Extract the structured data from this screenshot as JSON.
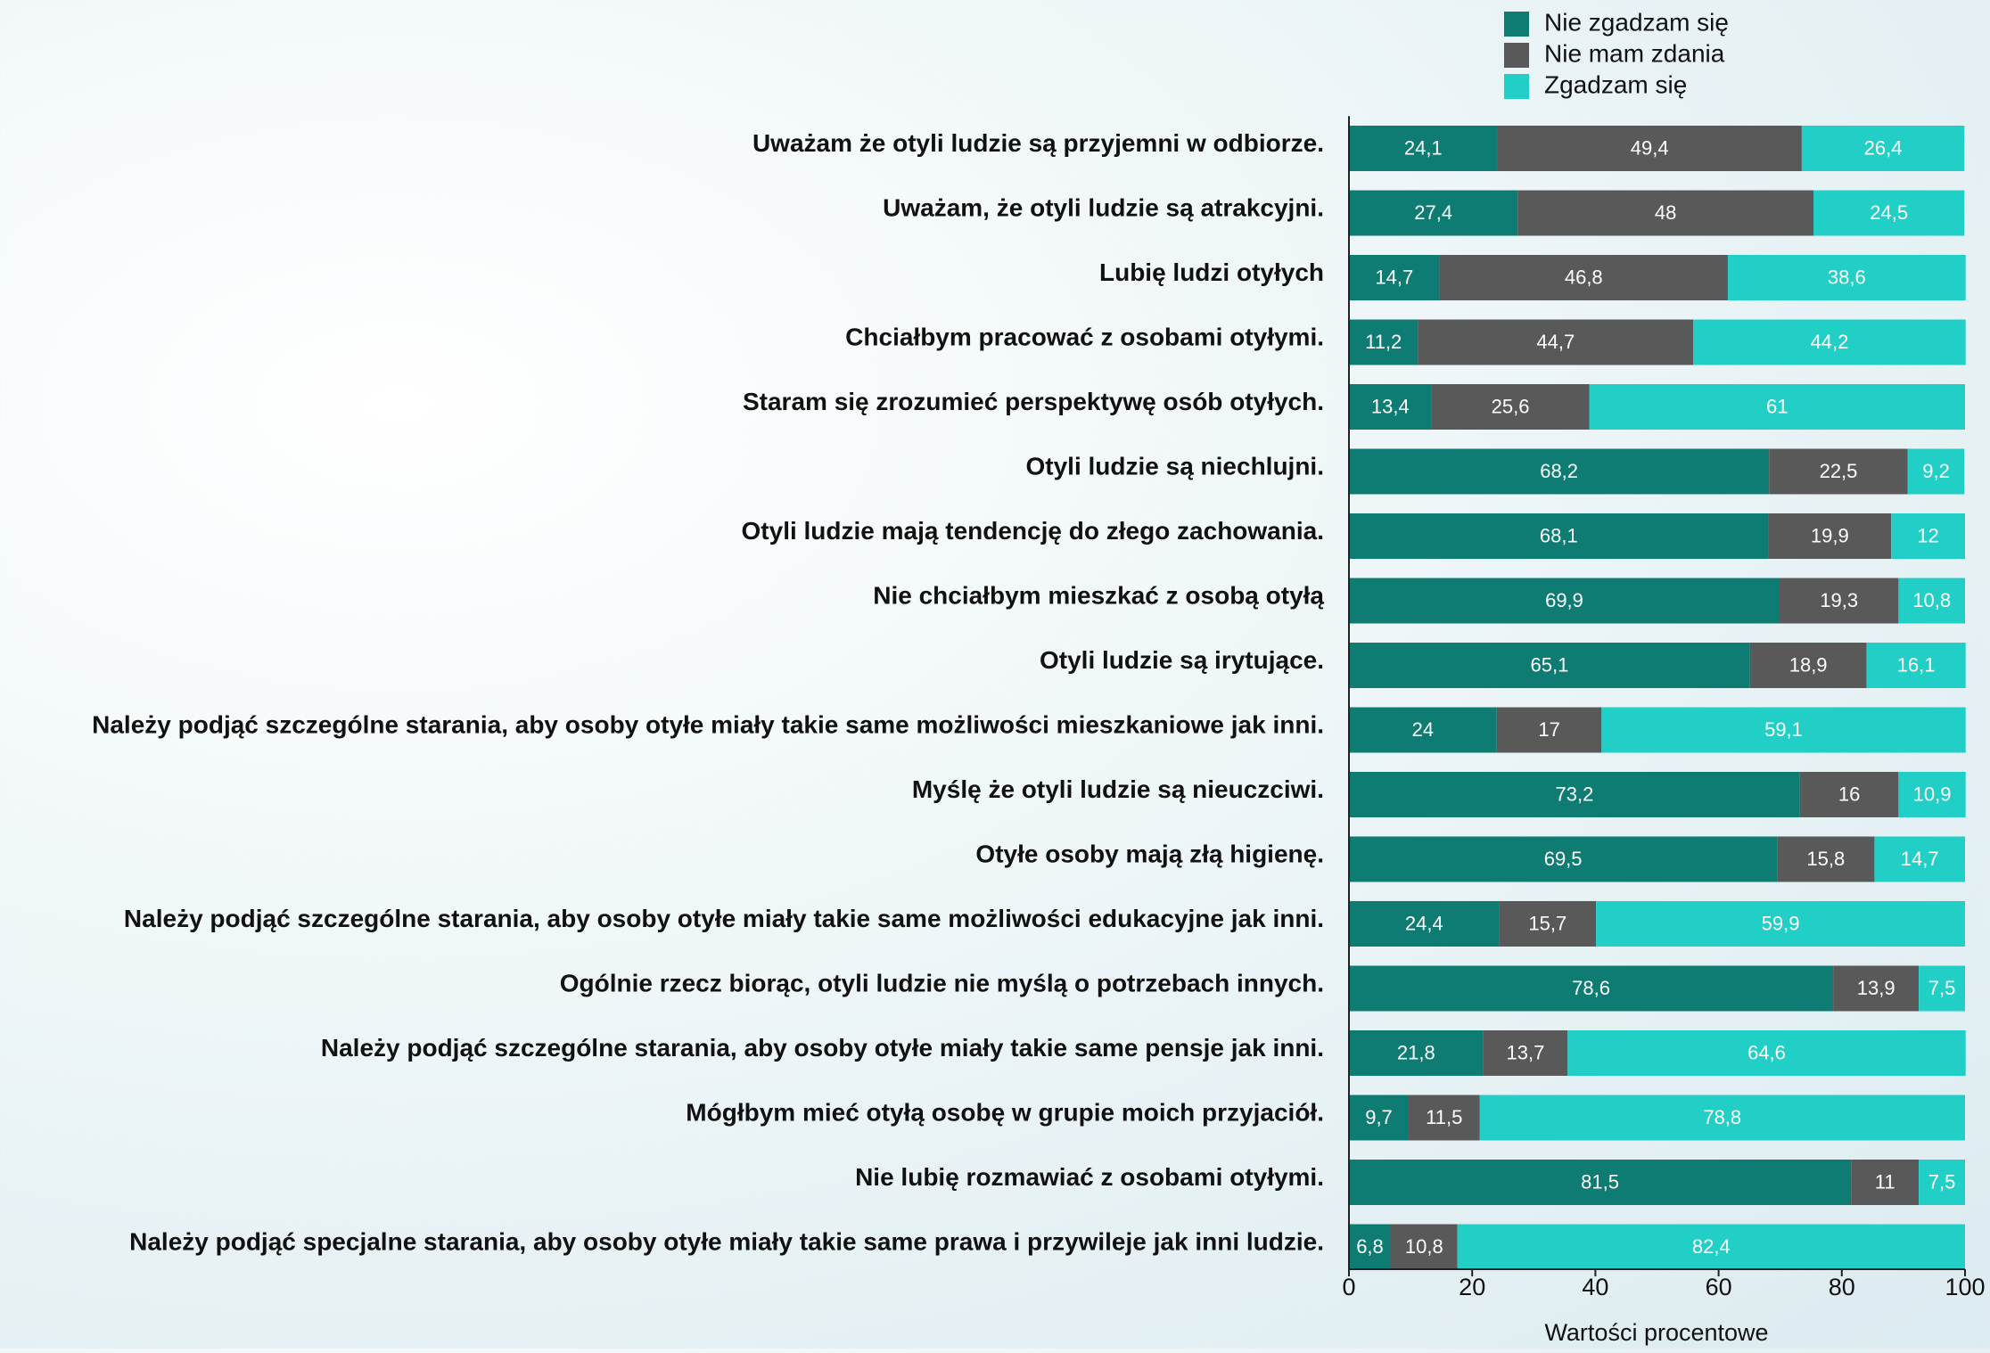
{
  "chart_data": {
    "type": "stacked_barh",
    "categories": [
      "Uważam że otyli ludzie są przyjemni w odbiorze.",
      "Uważam, że otyli ludzie są atrakcyjni.",
      "Lubię ludzi otyłych",
      "Chciałbym pracować z osobami otyłymi.",
      "Staram się zrozumieć perspektywę osób otyłych.",
      "Otyli ludzie są niechlujni.",
      "Otyli ludzie mają tendencję do złego zachowania.",
      "Nie chciałbym mieszkać z osobą otyłą",
      "Otyli ludzie są irytujące.",
      "Należy podjąć szczególne starania, aby osoby otyłe miały takie same możliwości mieszkaniowe jak inni.",
      "Myślę że otyli ludzie są nieuczciwi.",
      "Otyłe osoby mają złą higienę.",
      "Należy podjąć szczególne starania, aby osoby otyłe miały takie same możliwości edukacyjne jak inni.",
      "Ogólnie rzecz biorąc, otyli ludzie nie myślą o potrzebach innych.",
      "Należy podjąć szczególne starania, aby osoby otyłe miały takie same pensje jak inni.",
      "Mógłbym mieć otyłą osobę w grupie moich przyjaciół.",
      "Nie lubię rozmawiać z osobami otyłymi.",
      "Należy podjąć specjalne starania, aby osoby otyłe miały takie same prawa i przywileje jak inni ludzie."
    ],
    "series": [
      {
        "name": "Nie zgadzam się",
        "color": "#0e7c72",
        "values": [
          24.1,
          27.4,
          14.7,
          11.2,
          13.4,
          68.2,
          68.1,
          69.9,
          65.1,
          24,
          73.2,
          69.5,
          24.4,
          78.6,
          21.8,
          9.7,
          81.5,
          6.8
        ],
        "value_labels": [
          "24,1",
          "27,4",
          "14,7",
          "11,2",
          "13,4",
          "68,2",
          "68,1",
          "69,9",
          "65,1",
          "24",
          "73,2",
          "69,5",
          "24,4",
          "78,6",
          "21,8",
          "9,7",
          "81,5",
          "6,8"
        ]
      },
      {
        "name": "Nie mam zdania",
        "color": "#595959",
        "values": [
          49.4,
          48,
          46.8,
          44.7,
          25.6,
          22.5,
          19.9,
          19.3,
          18.9,
          17,
          16,
          15.8,
          15.7,
          13.9,
          13.7,
          11.5,
          11,
          10.8
        ],
        "value_labels": [
          "49,4",
          "48",
          "46,8",
          "44,7",
          "25,6",
          "22,5",
          "19,9",
          "19,3",
          "18,9",
          "17",
          "16",
          "15,8",
          "15,7",
          "13,9",
          "13,7",
          "11,5",
          "11",
          "10,8"
        ]
      },
      {
        "name": "Zgadzam się",
        "color": "#22cfc6",
        "values": [
          26.4,
          24.5,
          38.6,
          44.2,
          61,
          9.2,
          12,
          10.8,
          16.1,
          59.1,
          10.9,
          14.7,
          59.9,
          7.5,
          64.6,
          78.8,
          7.5,
          82.4
        ],
        "value_labels": [
          "26,4",
          "24,5",
          "38,6",
          "44,2",
          "61",
          "9,2",
          "12",
          "10,8",
          "16,1",
          "59,1",
          "10,9",
          "14,7",
          "59,9",
          "7,5",
          "64,6",
          "78,8",
          "7,5",
          "82,4"
        ]
      }
    ],
    "xlabel": "Wartości procentowe",
    "xlim": [
      0,
      100
    ],
    "xticks": [
      0,
      20,
      40,
      60,
      80,
      100
    ]
  }
}
